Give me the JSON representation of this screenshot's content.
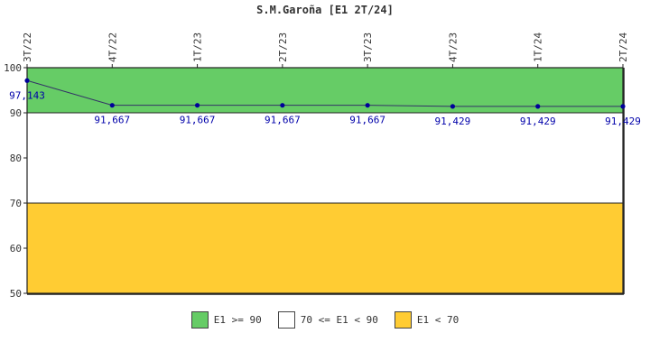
{
  "chart_data": {
    "type": "line",
    "title": "S.M.Garoña [E1 2T/24]",
    "categories": [
      "3T/22",
      "4T/22",
      "1T/23",
      "2T/23",
      "3T/23",
      "4T/23",
      "1T/24",
      "2T/24"
    ],
    "values": [
      97.143,
      91.667,
      91.667,
      91.667,
      91.667,
      91.429,
      91.429,
      91.429
    ],
    "value_labels": [
      "97,143",
      "91,667",
      "91,667",
      "91,667",
      "91,667",
      "91,429",
      "91,429",
      "91,429"
    ],
    "ylim": [
      50,
      100
    ],
    "yticks": [
      50,
      60,
      70,
      80,
      90,
      100
    ],
    "bands": [
      {
        "label": "E1 >= 90",
        "from": 90,
        "to": 100,
        "color": "#66cc66"
      },
      {
        "label": "70 <= E1 < 90",
        "from": 70,
        "to": 90,
        "color": "#ffffff"
      },
      {
        "label": "E1 < 70",
        "from": 50,
        "to": 70,
        "color": "#ffcc33"
      }
    ],
    "line_color": "#333366",
    "marker_color": "#000099",
    "legend_position": "bottom"
  }
}
